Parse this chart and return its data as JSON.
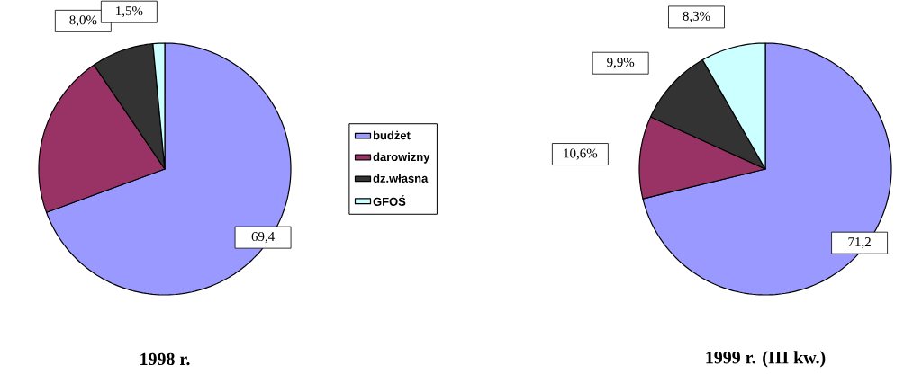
{
  "chart_data": [
    {
      "type": "pie",
      "title": "1998 r.",
      "categories": [
        "budżet",
        "darowizny",
        "dz.własna",
        "GFOŚ"
      ],
      "values": [
        69.4,
        21.1,
        8.0,
        1.5
      ],
      "colors": [
        "#9999ff",
        "#993366",
        "#333333",
        "#ccffff"
      ],
      "value_labels": [
        "69,4",
        null,
        "8,0%",
        "1,5%"
      ],
      "legend": "right"
    },
    {
      "type": "pie",
      "title": "1999 r. (III kw.)",
      "categories": [
        null,
        null,
        null,
        null
      ],
      "values": [
        71.2,
        10.6,
        9.9,
        8.3
      ],
      "colors": [
        "#9999ff",
        "#993366",
        "#333333",
        "#ccffff"
      ],
      "value_labels": [
        "71,2",
        "10,6%",
        "9,9%",
        "8,3%"
      ],
      "legend": false
    }
  ]
}
